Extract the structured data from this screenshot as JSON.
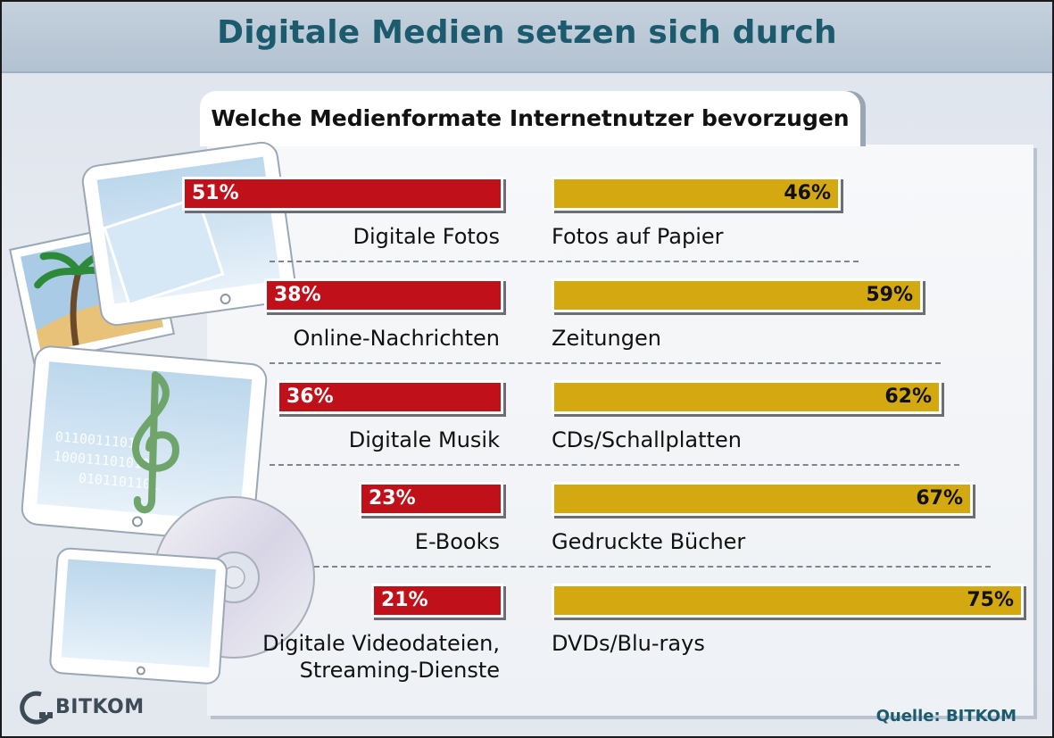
{
  "header": {
    "title": "Digitale Medien setzen sich durch",
    "subtitle": "Welche Medienformate Internetnutzer bevorzugen"
  },
  "colors": {
    "digital": "#c0111a",
    "print": "#d4a810",
    "title": "#1c5a6e"
  },
  "chart_data": {
    "type": "bar",
    "title": "Welche Medienformate Internetnutzer bevorzugen",
    "orientation": "horizontal-paired",
    "xlim": [
      0,
      100
    ],
    "rows": [
      {
        "digital_label": "Digitale Fotos",
        "digital": 51,
        "digital_text": "51%",
        "print_label": "Fotos auf Papier",
        "print": 46,
        "print_text": "46%"
      },
      {
        "digital_label": "Online-Nachrichten",
        "digital": 38,
        "digital_text": "38%",
        "print_label": "Zeitungen",
        "print": 59,
        "print_text": "59%"
      },
      {
        "digital_label": "Digitale Musik",
        "digital": 36,
        "digital_text": "36%",
        "print_label": "CDs/Schallplatten",
        "print": 62,
        "print_text": "62%"
      },
      {
        "digital_label": "E-Books",
        "digital": 23,
        "digital_text": "23%",
        "print_label": "Gedruckte Bücher",
        "print": 67,
        "print_text": "67%"
      },
      {
        "digital_label": "Digitale Videodateien,\nStreaming-Dienste",
        "digital": 21,
        "digital_text": "21%",
        "print_label": "DVDs/Blu-rays",
        "print": 75,
        "print_text": "75%"
      }
    ]
  },
  "footer": {
    "logo_text": "BITKOM",
    "source": "Quelle: BITKOM"
  },
  "icons": [
    "tablet-photo-icon",
    "tablet-music-icon",
    "tablet-video-icon",
    "disc-icon",
    "music-note-icon",
    "palm-tree-icon",
    "bitkom-logo-icon"
  ]
}
